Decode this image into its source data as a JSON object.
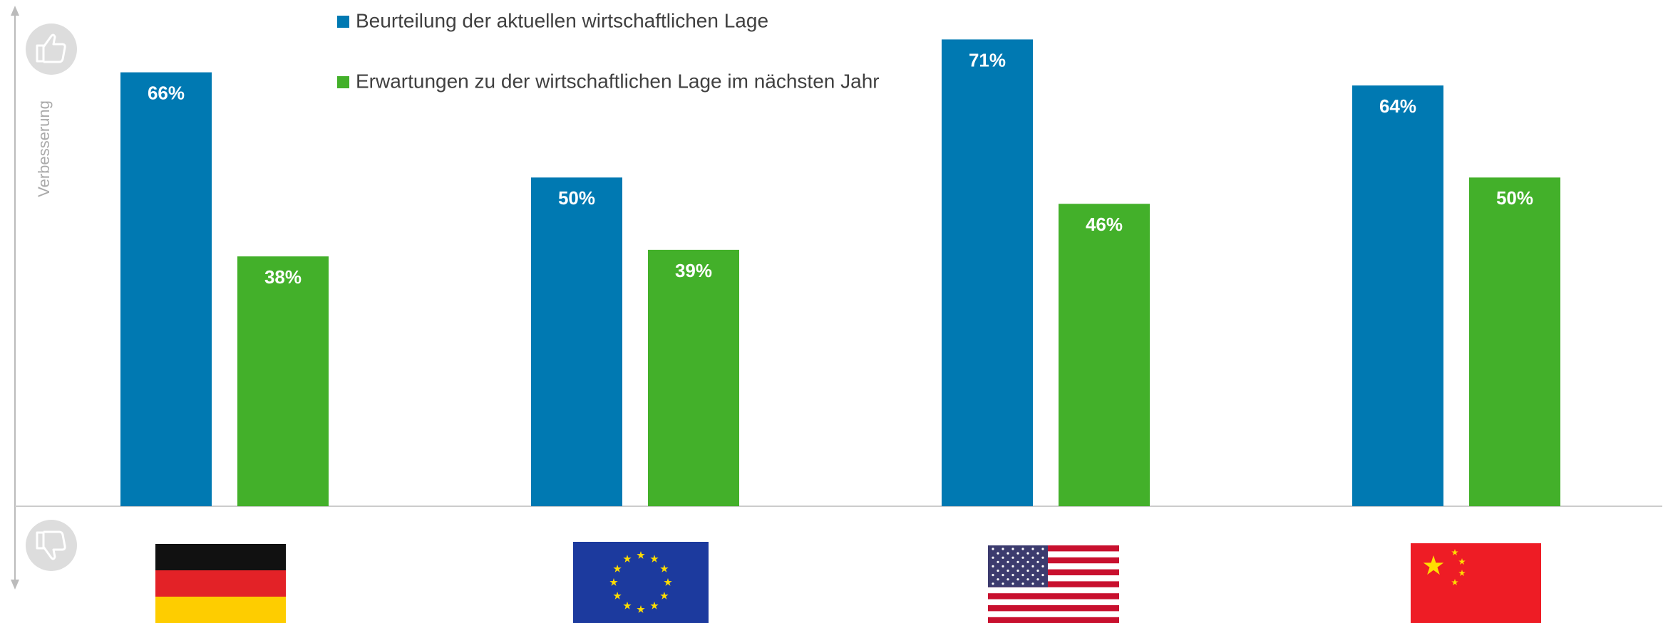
{
  "chart_data": {
    "type": "bar",
    "y_label": "Verbesserung",
    "categories": [
      null,
      null,
      null,
      null
    ],
    "series": [
      {
        "name": "Beurteilung der aktuellen wirtschaftlichen Lage",
        "color": "#0079b2",
        "values": [
          66,
          50,
          71,
          64
        ],
        "value_labels": [
          "66%",
          "50%",
          "71%",
          "64%"
        ]
      },
      {
        "name": "Erwartungen zu der wirtschaftlichen Lage im nächsten Jahr",
        "color": "#43b02a",
        "values": [
          38,
          39,
          46,
          50
        ],
        "value_labels": [
          "38%",
          "39%",
          "46%",
          "50%"
        ]
      }
    ],
    "ylim": [
      0,
      77
    ]
  }
}
